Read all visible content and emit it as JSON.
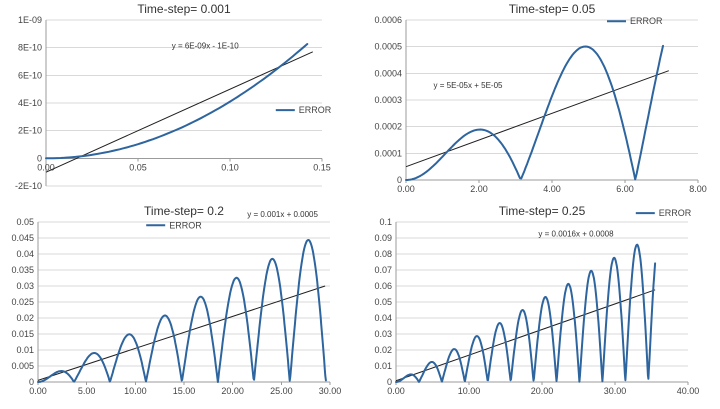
{
  "page": {
    "background": "#FFFFFF"
  },
  "styles": {
    "series_color": "#2E659E",
    "trend_color": "#1F1F1F",
    "grid_color": "#D9D9D9",
    "axis_color": "#9B9B9B",
    "tick_color": "#444444",
    "title_color": "#333333",
    "equation_color": "#333333"
  },
  "chart_data": [
    {
      "type": "line",
      "title": "Time-step= 0.001",
      "series_name": "ERROR",
      "equation": "y = 6E-09x - 1E-10",
      "xlabel": "",
      "ylabel": "",
      "grid": "horizontal",
      "legend_position": "right-middle",
      "xlim": [
        0,
        0.15
      ],
      "ylim": [
        -2e-10,
        1e-09
      ],
      "x_ticks": [
        {
          "v": 0,
          "label": "0.00"
        },
        {
          "v": 0.05,
          "label": "0.05"
        },
        {
          "v": 0.1,
          "label": "0.10"
        },
        {
          "v": 0.15,
          "label": "0.15"
        }
      ],
      "y_ticks": [
        {
          "v": -2e-10,
          "label": "-2E-10"
        },
        {
          "v": 0,
          "label": "0"
        },
        {
          "v": 2e-10,
          "label": "2E-10"
        },
        {
          "v": 4e-10,
          "label": "4E-10"
        },
        {
          "v": 6e-10,
          "label": "6E-10"
        },
        {
          "v": 8e-10,
          "label": "8E-10"
        },
        {
          "v": 1e-09,
          "label": "1E-09"
        }
      ],
      "trend": {
        "slope": 6e-09,
        "intercept": -1e-10,
        "x_start": 0,
        "x_end": 0.145
      },
      "model": {
        "form": "quadratic",
        "a": 4.1e-08,
        "k": 0,
        "x_max": 0.143,
        "step": 0.002
      },
      "key_points": [
        {
          "x": 0,
          "y": 0
        },
        {
          "x": 0.05,
          "y": 1e-10
        },
        {
          "x": 0.1,
          "y": 4.1e-10
        },
        {
          "x": 0.143,
          "y": 8.4e-10
        }
      ],
      "legend_pos": {
        "fx": 0.83,
        "fy": 0.56
      },
      "equation_pos": {
        "fx": 0.57,
        "fy": 0.24
      },
      "margins": {
        "l": 46,
        "r": 38,
        "t": 20,
        "b": 16
      }
    },
    {
      "type": "line",
      "title": "Time-step= 0.05",
      "series_name": "ERROR",
      "equation": "y = 5E-05x + 5E-05",
      "xlabel": "",
      "ylabel": "",
      "grid": "horizontal",
      "legend_position": "top-right",
      "xlim": [
        0,
        8
      ],
      "ylim": [
        0,
        0.0006
      ],
      "x_ticks": [
        {
          "v": 0,
          "label": "0.00"
        },
        {
          "v": 2,
          "label": "2.00"
        },
        {
          "v": 4,
          "label": "4.00"
        },
        {
          "v": 6,
          "label": "6.00"
        },
        {
          "v": 8,
          "label": "8.00"
        }
      ],
      "y_ticks": [
        {
          "v": 0,
          "label": "0"
        },
        {
          "v": 0.0001,
          "label": "0.0001"
        },
        {
          "v": 0.0002,
          "label": "0.0002"
        },
        {
          "v": 0.0003,
          "label": "0.0003"
        },
        {
          "v": 0.0004,
          "label": "0.0004"
        },
        {
          "v": 0.0005,
          "label": "0.0005"
        },
        {
          "v": 0.0006,
          "label": "0.0006"
        }
      ],
      "trend": {
        "slope": 5e-05,
        "intercept": 5e-05,
        "x_start": 0,
        "x_end": 7.2
      },
      "model": {
        "form": "x_abs_sin",
        "a": 0.000104,
        "k": 1,
        "x_max": 7.05,
        "step": 0.04
      },
      "key_points": [
        {
          "x": 0,
          "y": 0
        },
        {
          "x": 2.0,
          "y": 0.00019
        },
        {
          "x": 3.15,
          "y": 2e-05
        },
        {
          "x": 4.9,
          "y": 0.0005
        },
        {
          "x": 6.3,
          "y": 5e-05
        },
        {
          "x": 7.05,
          "y": 0.0005
        }
      ],
      "legend_pos": {
        "fx": 0.75,
        "fy": 0.12
      },
      "equation_pos": {
        "fx": 0.3,
        "fy": 0.435
      },
      "margins": {
        "l": 46,
        "r": 22,
        "t": 20,
        "b": 22
      }
    },
    {
      "type": "line",
      "title": "Time-step= 0.2",
      "series_name": "ERROR",
      "equation": "y = 0.001x + 0.0005",
      "xlabel": "",
      "ylabel": "",
      "grid": "horizontal",
      "legend_position": "top-center",
      "xlim": [
        0,
        30
      ],
      "ylim": [
        0,
        0.05
      ],
      "x_ticks": [
        {
          "v": 0,
          "label": "0.00"
        },
        {
          "v": 5,
          "label": "5.00"
        },
        {
          "v": 10,
          "label": "10.00"
        },
        {
          "v": 15,
          "label": "15.00"
        },
        {
          "v": 20,
          "label": "20.00"
        },
        {
          "v": 25,
          "label": "25.00"
        },
        {
          "v": 30,
          "label": "30.00"
        }
      ],
      "y_ticks": [
        {
          "v": 0,
          "label": "0"
        },
        {
          "v": 0.005,
          "label": "0.005"
        },
        {
          "v": 0.01,
          "label": "0.01"
        },
        {
          "v": 0.015,
          "label": "0.015"
        },
        {
          "v": 0.02,
          "label": "0.02"
        },
        {
          "v": 0.025,
          "label": "0.025"
        },
        {
          "v": 0.03,
          "label": "0.03"
        },
        {
          "v": 0.035,
          "label": "0.035"
        },
        {
          "v": 0.04,
          "label": "0.04"
        },
        {
          "v": 0.045,
          "label": "0.045"
        },
        {
          "v": 0.05,
          "label": "0.05"
        }
      ],
      "trend": {
        "slope": 0.001,
        "intercept": 0.0005,
        "x_start": 0,
        "x_end": 29.5
      },
      "model": {
        "form": "x_abs_sin",
        "a": 0.0016,
        "k": 0.85,
        "x_max": 29.6,
        "step": 0.06
      },
      "key_points": [
        {
          "x": 1.9,
          "y": 0.003
        },
        {
          "x": 5.5,
          "y": 0.009
        },
        {
          "x": 9.2,
          "y": 0.015
        },
        {
          "x": 12.9,
          "y": 0.021
        },
        {
          "x": 16.6,
          "y": 0.027
        },
        {
          "x": 20.3,
          "y": 0.032
        },
        {
          "x": 24.0,
          "y": 0.038
        },
        {
          "x": 27.7,
          "y": 0.044
        }
      ],
      "legend_pos": {
        "fx": 0.47,
        "fy": 0.13
      },
      "equation_pos": {
        "fx": 0.785,
        "fy": 0.075
      },
      "margins": {
        "l": 38,
        "r": 30,
        "t": 20,
        "b": 22
      }
    },
    {
      "type": "line",
      "title": "Time-step= 0.25",
      "series_name": "ERROR",
      "equation": "y = 0.0016x + 0.0008",
      "xlabel": "",
      "ylabel": "",
      "grid": "horizontal",
      "legend_position": "top-right",
      "xlim": [
        0,
        40
      ],
      "ylim": [
        0,
        0.1
      ],
      "x_ticks": [
        {
          "v": 0,
          "label": "0.00"
        },
        {
          "v": 10,
          "label": "10.00"
        },
        {
          "v": 20,
          "label": "20.00"
        },
        {
          "v": 30,
          "label": "30.00"
        },
        {
          "v": 40,
          "label": "40.00"
        }
      ],
      "y_ticks": [
        {
          "v": 0,
          "label": "0"
        },
        {
          "v": 0.01,
          "label": "0.01"
        },
        {
          "v": 0.02,
          "label": "0.02"
        },
        {
          "v": 0.03,
          "label": "0.03"
        },
        {
          "v": 0.04,
          "label": "0.04"
        },
        {
          "v": 0.05,
          "label": "0.05"
        },
        {
          "v": 0.06,
          "label": "0.06"
        },
        {
          "v": 0.07,
          "label": "0.07"
        },
        {
          "v": 0.08,
          "label": "0.08"
        },
        {
          "v": 0.09,
          "label": "0.09"
        },
        {
          "v": 0.1,
          "label": "0.1"
        }
      ],
      "trend": {
        "slope": 0.0016,
        "intercept": 0.0008,
        "x_start": 0,
        "x_end": 35.5
      },
      "model": {
        "form": "x_abs_sin",
        "a": 0.0026,
        "k": 1,
        "x_max": 35.5,
        "step": 0.07
      },
      "key_points": [
        {
          "x": 4.7,
          "y": 0.012
        },
        {
          "x": 7.85,
          "y": 0.02
        },
        {
          "x": 14.1,
          "y": 0.037
        },
        {
          "x": 20.4,
          "y": 0.053
        },
        {
          "x": 26.7,
          "y": 0.069
        },
        {
          "x": 33.0,
          "y": 0.086
        },
        {
          "x": 35.5,
          "y": 0.078
        }
      ],
      "legend_pos": {
        "fx": 0.83,
        "fy": 0.07
      },
      "equation_pos": {
        "fx": 0.6,
        "fy": 0.17
      },
      "margins": {
        "l": 36,
        "r": 32,
        "t": 20,
        "b": 22
      }
    }
  ]
}
